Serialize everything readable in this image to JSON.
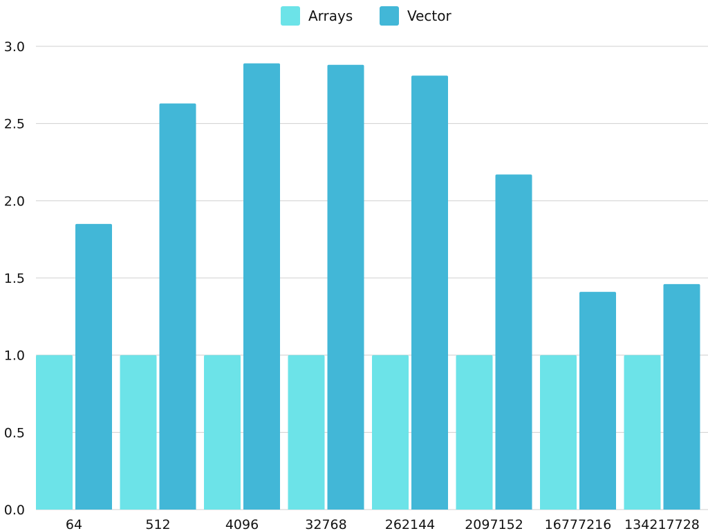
{
  "chart_data": {
    "type": "bar",
    "categories": [
      "64",
      "512",
      "4096",
      "32768",
      "262144",
      "2097152",
      "16777216",
      "134217728"
    ],
    "series": [
      {
        "name": "Arrays",
        "color": "#6ce3e8",
        "values": [
          1.0,
          1.0,
          1.0,
          1.0,
          1.0,
          1.0,
          1.0,
          1.0
        ]
      },
      {
        "name": "Vector",
        "color": "#42b7d7",
        "values": [
          1.85,
          2.63,
          2.89,
          2.88,
          2.81,
          2.17,
          1.41,
          1.46
        ]
      }
    ],
    "yticks": [
      "0.0",
      "0.5",
      "1.0",
      "1.5",
      "2.0",
      "2.5",
      "3.0"
    ],
    "ylim": [
      0,
      3.0
    ],
    "grid": true,
    "legend_position": "top-center"
  }
}
